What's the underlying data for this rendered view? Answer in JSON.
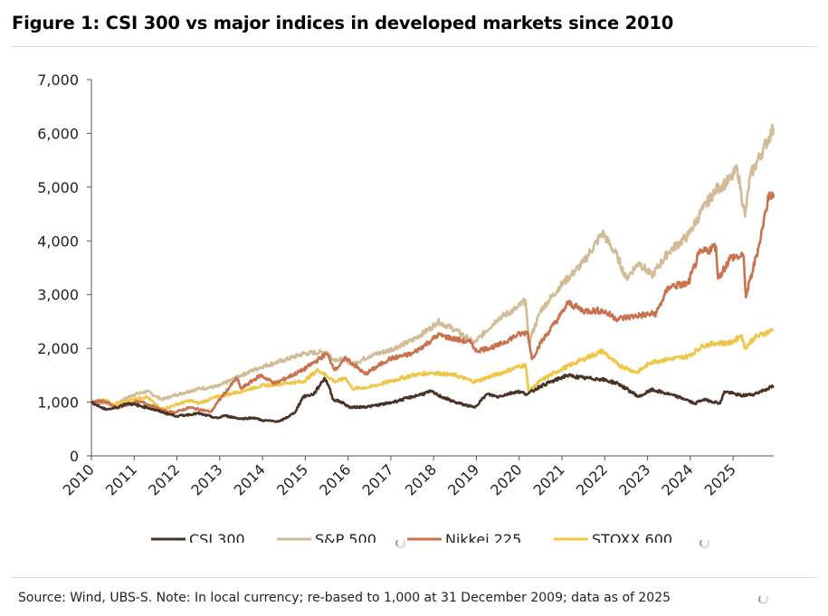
{
  "chart_data": {
    "type": "line",
    "title": "Figure 1: CSI 300 vs major indices in developed markets since 2010",
    "source": "Source: Wind, UBS-S. Note: In local currency; re-based to 1,000 at 31 December 2009; data as of 2025",
    "xlabel": "",
    "ylabel": "",
    "xlim": [
      2010,
      2025.95
    ],
    "ylim": [
      0,
      7000
    ],
    "yticks": [
      0,
      1000,
      2000,
      3000,
      4000,
      5000,
      6000,
      7000
    ],
    "ytick_labels": [
      "0",
      "1,000",
      "2,000",
      "3,000",
      "4,000",
      "5,000",
      "6,000",
      "7,000"
    ],
    "xticks": [
      2010,
      2011,
      2012,
      2013,
      2014,
      2015,
      2016,
      2017,
      2018,
      2019,
      2020,
      2021,
      2022,
      2023,
      2024,
      2025
    ],
    "xtick_labels": [
      "2010",
      "2011",
      "2012",
      "2013",
      "2014",
      "2015",
      "2016",
      "2017",
      "2018",
      "2019",
      "2020",
      "2021",
      "2022",
      "2023",
      "2024",
      "2025"
    ],
    "grid": false,
    "legend": "bottom",
    "series": [
      {
        "name": "CSI 300",
        "color": "#4a3325",
        "x": [
          2010,
          2010.3,
          2010.5,
          2010.85,
          2011.3,
          2011.8,
          2012,
          2012.5,
          2012.95,
          2013.1,
          2013.5,
          2013.8,
          2014,
          2014.4,
          2014.75,
          2014.95,
          2015.2,
          2015.45,
          2015.55,
          2015.65,
          2015.85,
          2016.05,
          2016.5,
          2016.95,
          2017.5,
          2017.95,
          2018.1,
          2018.5,
          2018.95,
          2019.25,
          2019.5,
          2019.95,
          2020.2,
          2020.5,
          2020.95,
          2021.1,
          2021.5,
          2021.9,
          2022.3,
          2022.8,
          2023.1,
          2023.5,
          2023.9,
          2024.1,
          2024.3,
          2024.7,
          2024.8,
          2025.2,
          2025.5,
          2025.8,
          2025.95
        ],
        "values": [
          1000,
          870,
          880,
          980,
          900,
          780,
          740,
          790,
          700,
          750,
          690,
          710,
          660,
          640,
          800,
          1100,
          1150,
          1450,
          1300,
          1050,
          1000,
          900,
          920,
          980,
          1100,
          1200,
          1130,
          1000,
          900,
          1150,
          1100,
          1200,
          1150,
          1300,
          1440,
          1500,
          1450,
          1430,
          1350,
          1100,
          1230,
          1150,
          1050,
          970,
          1050,
          980,
          1200,
          1120,
          1150,
          1250,
          1300
        ]
      },
      {
        "name": "S&P 500",
        "color": "#d2bc98",
        "x": [
          2010,
          2010.35,
          2010.5,
          2010.95,
          2011.3,
          2011.65,
          2011.95,
          2012.5,
          2012.95,
          2013.5,
          2013.95,
          2014.5,
          2014.95,
          2015.5,
          2015.65,
          2015.95,
          2016.1,
          2016.5,
          2016.95,
          2017.5,
          2017.95,
          2018.1,
          2018.5,
          2018.95,
          2019.5,
          2019.95,
          2020.15,
          2020.22,
          2020.5,
          2020.95,
          2021.5,
          2021.95,
          2022.3,
          2022.5,
          2022.8,
          2023.1,
          2023.5,
          2023.95,
          2024.3,
          2024.6,
          2024.95,
          2025.1,
          2025.28,
          2025.4,
          2025.7,
          2025.95
        ],
        "values": [
          1000,
          980,
          940,
          1130,
          1200,
          1050,
          1130,
          1250,
          1290,
          1500,
          1650,
          1780,
          1900,
          1940,
          1800,
          1780,
          1700,
          1860,
          1960,
          2150,
          2390,
          2500,
          2350,
          2100,
          2550,
          2750,
          2900,
          2100,
          2700,
          3150,
          3600,
          4150,
          3700,
          3300,
          3600,
          3350,
          3800,
          4100,
          4600,
          4950,
          5150,
          5350,
          4450,
          5200,
          5700,
          6100
        ]
      },
      {
        "name": "Nikkei 225",
        "color": "#c9734e",
        "x": [
          2010,
          2010.3,
          2010.6,
          2010.95,
          2011.2,
          2011.7,
          2011.95,
          2012.3,
          2012.8,
          2012.95,
          2013.4,
          2013.5,
          2013.95,
          2014.3,
          2014.95,
          2015.5,
          2015.7,
          2015.95,
          2016.4,
          2016.95,
          2017.5,
          2017.95,
          2018.1,
          2018.9,
          2018.98,
          2019.5,
          2019.95,
          2020.2,
          2020.3,
          2020.5,
          2020.95,
          2021.15,
          2021.5,
          2021.95,
          2022.3,
          2022.7,
          2023.2,
          2023.5,
          2023.95,
          2024.2,
          2024.6,
          2024.65,
          2024.95,
          2025.25,
          2025.3,
          2025.6,
          2025.85,
          2025.95
        ],
        "values": [
          1000,
          1020,
          880,
          990,
          1000,
          830,
          810,
          900,
          820,
          1000,
          1450,
          1250,
          1500,
          1350,
          1600,
          1900,
          1600,
          1820,
          1520,
          1800,
          1900,
          2150,
          2250,
          2100,
          1950,
          2050,
          2250,
          2300,
          1800,
          2100,
          2600,
          2850,
          2700,
          2700,
          2550,
          2600,
          2650,
          3150,
          3200,
          3750,
          3900,
          3300,
          3700,
          3700,
          2950,
          3900,
          4900,
          4800
        ]
      },
      {
        "name": "STOXX 600",
        "color": "#f0c648",
        "x": [
          2010,
          2010.35,
          2010.5,
          2010.95,
          2011.3,
          2011.6,
          2011.8,
          2011.95,
          2012.3,
          2012.5,
          2012.95,
          2013.5,
          2013.95,
          2014.5,
          2014.95,
          2015.3,
          2015.7,
          2015.95,
          2016.1,
          2016.5,
          2016.95,
          2017.5,
          2017.95,
          2018.5,
          2018.95,
          2019.5,
          2019.95,
          2020.15,
          2020.22,
          2020.5,
          2020.95,
          2021.5,
          2021.95,
          2022.3,
          2022.75,
          2023.1,
          2023.5,
          2023.95,
          2024.3,
          2024.6,
          2024.95,
          2025.2,
          2025.27,
          2025.5,
          2025.95
        ],
        "values": [
          1000,
          1040,
          950,
          1050,
          1100,
          880,
          900,
          950,
          1030,
          980,
          1100,
          1200,
          1300,
          1350,
          1380,
          1600,
          1380,
          1450,
          1250,
          1280,
          1380,
          1500,
          1550,
          1500,
          1380,
          1520,
          1650,
          1700,
          1200,
          1400,
          1600,
          1800,
          1950,
          1700,
          1550,
          1750,
          1800,
          1850,
          2050,
          2100,
          2100,
          2250,
          2000,
          2200,
          2350
        ]
      }
    ]
  }
}
